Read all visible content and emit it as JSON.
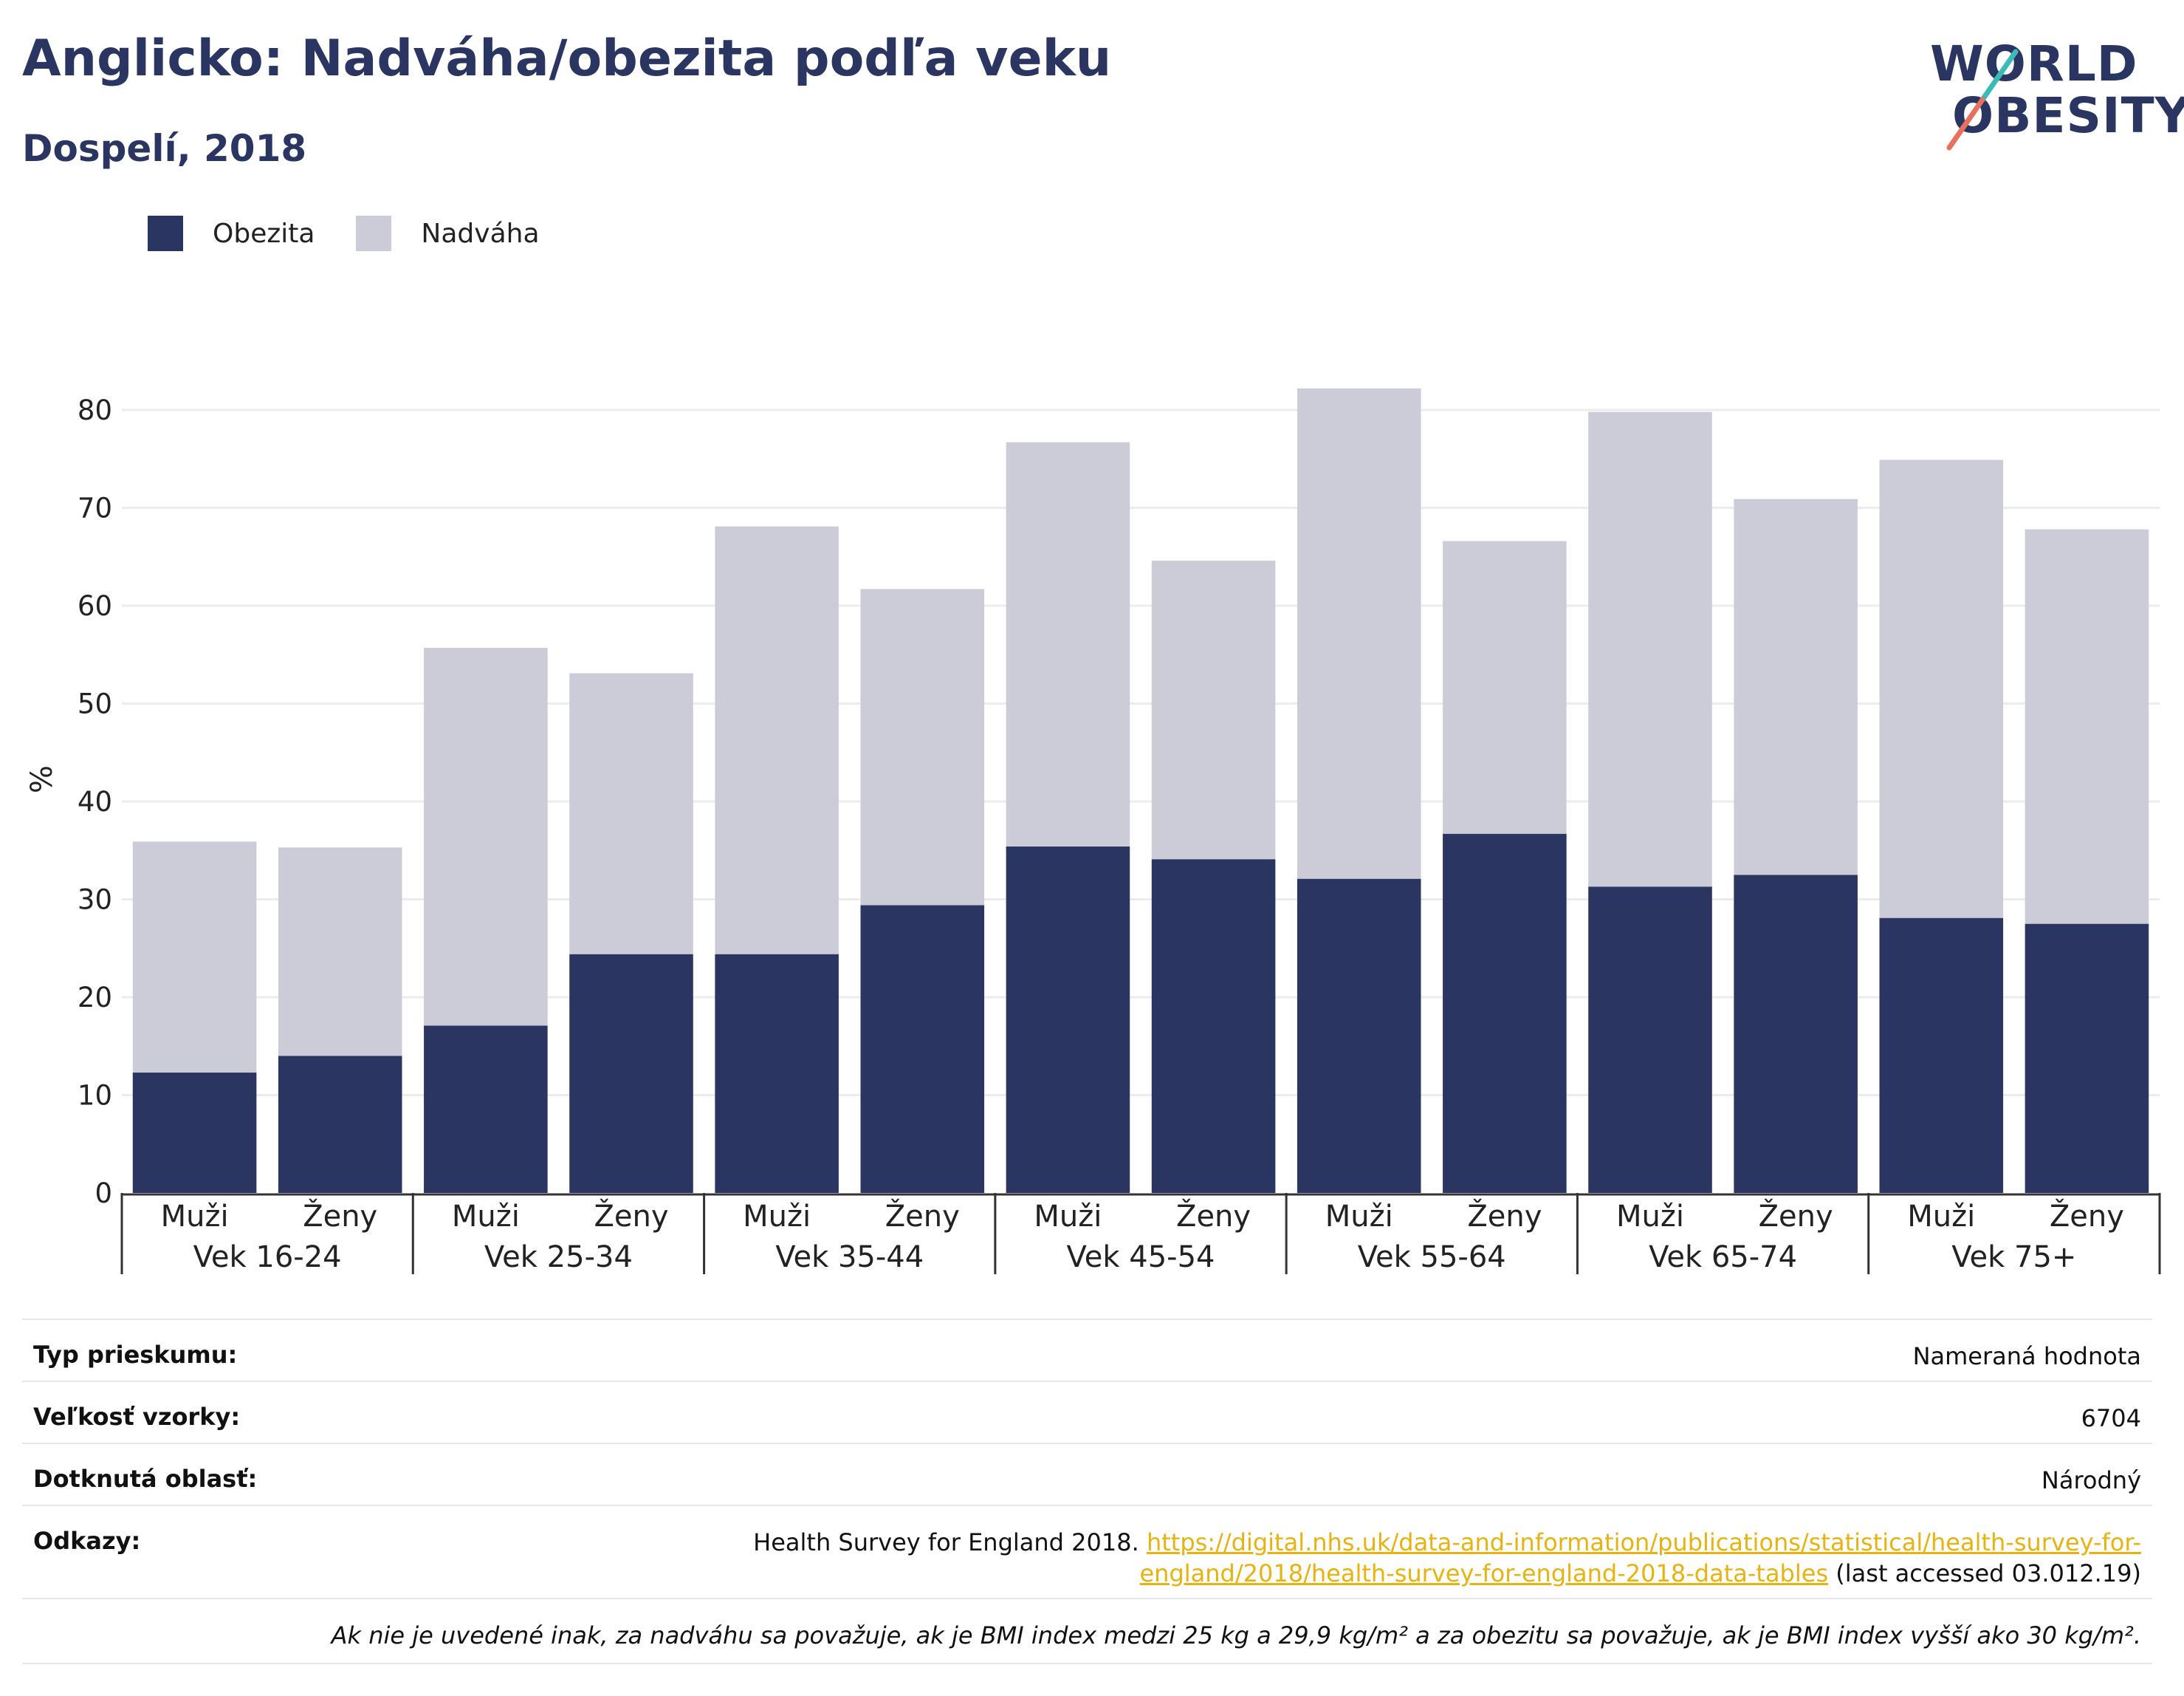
{
  "header": {
    "title": "Anglicko: Nadváha/obezita podľa veku",
    "subtitle": "Dospelí, 2018"
  },
  "logo": {
    "line1": "WORLD",
    "line2": "OBESITY",
    "accent_teal": "#3bbbb7",
    "accent_red": "#e8705f"
  },
  "legend": [
    {
      "label": "Obezita",
      "color": "#2a3562"
    },
    {
      "label": "Nadváha",
      "color": "#cbccd8"
    }
  ],
  "chart_data": {
    "type": "bar",
    "stacked": true,
    "ylabel": "%",
    "ylim": [
      0,
      85
    ],
    "yticks": [
      0,
      10,
      20,
      30,
      40,
      50,
      60,
      70,
      80
    ],
    "grid": true,
    "legend_position": "top-left",
    "groups": [
      "Vek 16-24",
      "Vek 25-34",
      "Vek 35-44",
      "Vek 45-54",
      "Vek 55-64",
      "Vek 65-74",
      "Vek 75+"
    ],
    "categories": [
      "Muži",
      "Ženy",
      "Muži",
      "Ženy",
      "Muži",
      "Ženy",
      "Muži",
      "Ženy",
      "Muži",
      "Ženy",
      "Muži",
      "Ženy",
      "Muži",
      "Ženy"
    ],
    "series": [
      {
        "name": "Obezita",
        "color": "#2a3562",
        "values": [
          12.3,
          14.0,
          17.1,
          24.4,
          24.4,
          29.4,
          35.4,
          34.1,
          32.1,
          36.7,
          31.3,
          32.5,
          28.1,
          27.5
        ]
      },
      {
        "name": "Nadváha",
        "color": "#cbccd8",
        "values": [
          23.6,
          21.3,
          38.6,
          28.7,
          43.7,
          32.3,
          41.3,
          30.5,
          50.1,
          29.9,
          48.5,
          38.4,
          46.8,
          40.3
        ]
      }
    ]
  },
  "info": {
    "survey_type_label": "Typ prieskumu:",
    "survey_type_value": "Nameraná hodnota",
    "sample_size_label": "Veľkosť vzorky:",
    "sample_size_value": "6704",
    "area_label": "Dotknutá oblasť:",
    "area_value": "Národný",
    "references_label": "Odkazy:",
    "references_prefix": "Health Survey for England 2018. ",
    "references_link": "https://digital.nhs.uk/data-and-information/publications/statistical/health-survey-for-england/2018/health-survey-for-england-2018-data-tables",
    "references_suffix": " (last accessed 03.012.19)",
    "note": "Ak nie je uvedené inak, za nadváhu sa považuje, ak je BMI index medzi 25 kg a 29,9 kg/m² a za obezitu sa považuje, ak je BMI index vyšší ako 30 kg/m²."
  }
}
